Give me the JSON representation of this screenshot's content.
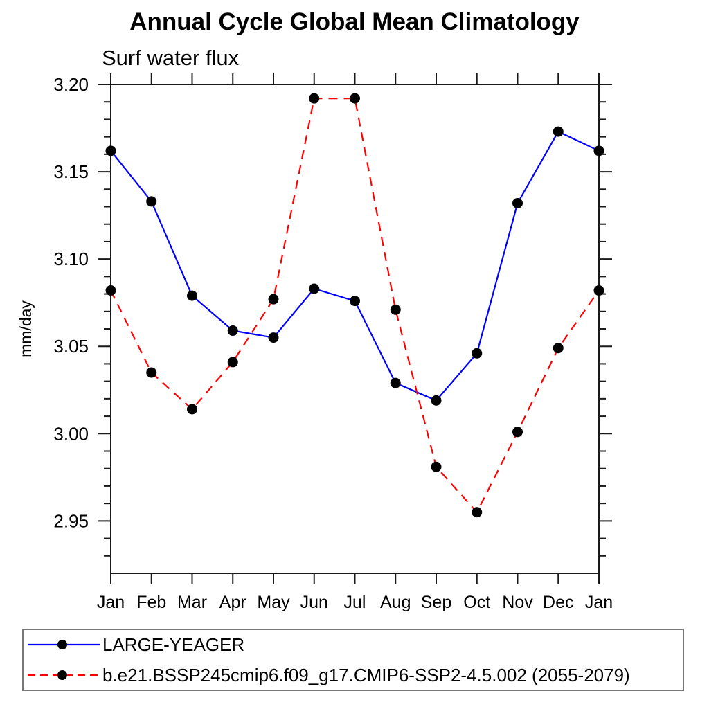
{
  "page": {
    "background": "#ffffff",
    "text_color": "#000000"
  },
  "chart_data": {
    "type": "line",
    "title": "Annual Cycle Global Mean Climatology",
    "subtitle": "Surf water flux",
    "xlabel": "",
    "ylabel": "mm/day",
    "categories": [
      "Jan",
      "Feb",
      "Mar",
      "Apr",
      "May",
      "Jun",
      "Jul",
      "Aug",
      "Sep",
      "Oct",
      "Nov",
      "Dec",
      "Jan"
    ],
    "ylim": [
      2.92,
      3.2
    ],
    "yticks": [
      {
        "value": 2.95,
        "label": "2.95"
      },
      {
        "value": 3.0,
        "label": "3.00"
      },
      {
        "value": 3.05,
        "label": "3.05"
      },
      {
        "value": 3.1,
        "label": "3.10"
      },
      {
        "value": 3.15,
        "label": "3.15"
      },
      {
        "value": 3.2,
        "label": "3.20"
      }
    ],
    "ytick_minor_step": 0.01,
    "grid": false,
    "frame_color": "#1a1a1a",
    "legend_position": "bottom-left",
    "series": [
      {
        "name": "LARGE-YEAGER",
        "color": "#0000ff",
        "line_style": "solid",
        "marker": "filled-circle",
        "marker_color": "#000000",
        "values": [
          3.162,
          3.133,
          3.079,
          3.059,
          3.055,
          3.083,
          3.076,
          3.029,
          3.019,
          3.046,
          3.132,
          3.173,
          3.162
        ]
      },
      {
        "name": "b.e21.BSSP245cmip6.f09_g17.CMIP6-SSP2-4.5.002 (2055-2079)",
        "color": "#ff0000",
        "line_style": "dashed",
        "marker": "filled-circle",
        "marker_color": "#000000",
        "values": [
          3.082,
          3.035,
          3.014,
          3.041,
          3.077,
          3.192,
          3.192,
          3.071,
          2.981,
          2.955,
          3.001,
          3.049,
          3.082
        ]
      }
    ]
  }
}
